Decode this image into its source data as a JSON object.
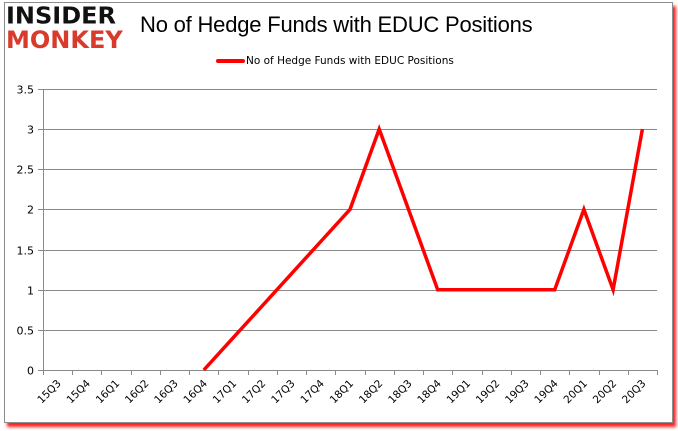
{
  "logo": {
    "line1": "INSIDER",
    "line2": "MONKEY"
  },
  "chart_data": {
    "type": "line",
    "title": "No of Hedge Funds with EDUC Positions",
    "xlabel": "",
    "ylabel": "",
    "categories": [
      "15Q3",
      "15Q4",
      "16Q1",
      "16Q2",
      "16Q3",
      "16Q4",
      "17Q1",
      "17Q2",
      "17Q3",
      "17Q4",
      "18Q1",
      "18Q2",
      "18Q3",
      "18Q4",
      "19Q1",
      "19Q2",
      "19Q3",
      "19Q4",
      "20Q1",
      "20Q2",
      "20Q3"
    ],
    "series": [
      {
        "name": "No of Hedge Funds with EDUC Positions",
        "color": "#ff0000",
        "values": [
          null,
          null,
          null,
          null,
          null,
          0,
          0.4,
          0.8,
          1.2,
          1.6,
          2,
          3,
          2,
          1,
          1,
          1,
          1,
          1,
          2,
          1,
          3
        ]
      }
    ],
    "ylim": [
      0,
      3.5
    ],
    "yticks": [
      "0",
      "0.5",
      "1",
      "1.5",
      "2",
      "2.5",
      "3",
      "3.5"
    ],
    "ytick_values": [
      0,
      0.5,
      1,
      1.5,
      2,
      2.5,
      3,
      3.5
    ],
    "grid": true,
    "legend_position": "top"
  }
}
